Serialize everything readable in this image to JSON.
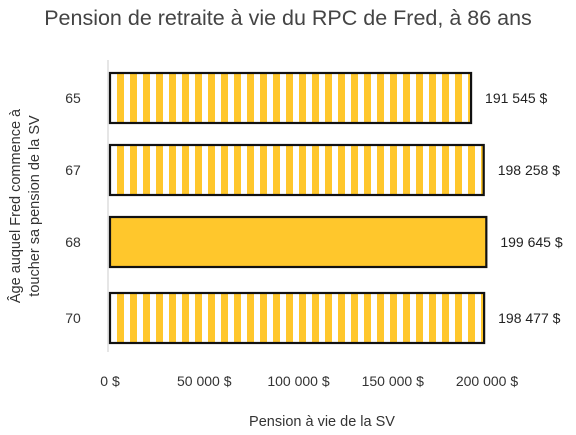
{
  "chart_data": {
    "type": "bar",
    "orientation": "horizontal",
    "title": "Pension de retraite à vie du RPC de Fred, à 86 ans",
    "xlabel": "Pension à vie de la SV",
    "ylabel": "Âge auquel Fred commence à toucher sa pension de la SV",
    "categories": [
      "65",
      "67",
      "68",
      "70"
    ],
    "values": [
      191545,
      198258,
      199645,
      198477
    ],
    "value_labels": [
      "191 545 $",
      "198 258 $",
      "199 645 $",
      "198 477 $"
    ],
    "highlighted": [
      false,
      false,
      true,
      false
    ],
    "xlim": [
      0,
      200000
    ],
    "xticks": [
      0,
      50000,
      100000,
      150000,
      200000
    ],
    "xtick_labels": [
      "0 $",
      "50 000 $",
      "100 000 $",
      "150 000 $",
      "200 000 $"
    ],
    "grid": false,
    "legend": "none",
    "colors": {
      "bar_fill": "#FFC72C",
      "stripe": "#FFFFFF",
      "bar_stroke": "#111111",
      "axis": "#CCCCCC"
    }
  }
}
